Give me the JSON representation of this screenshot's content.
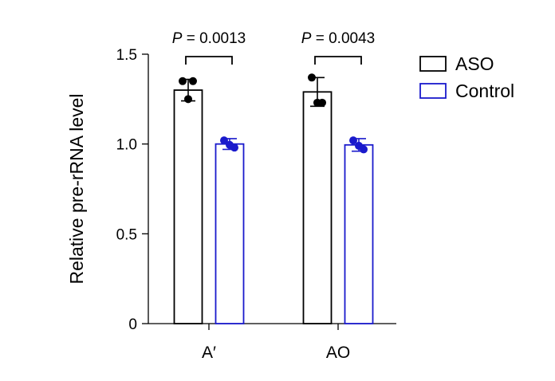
{
  "chart_data": {
    "type": "bar",
    "ylabel": "Relative pre-rRNA level",
    "ylim": [
      0,
      1.5
    ],
    "yticks": [
      "0",
      "0.5",
      "1.0",
      "1.5"
    ],
    "categories": [
      "A′",
      "AO"
    ],
    "series": [
      {
        "name": "ASO",
        "color": "#000000",
        "values": [
          1.3,
          1.29
        ],
        "error": [
          [
            1.24,
            1.36
          ],
          [
            1.21,
            1.37
          ]
        ],
        "points": [
          [
            1.35,
            1.35,
            1.25
          ],
          [
            1.37,
            1.23,
            1.23
          ]
        ]
      },
      {
        "name": "Control",
        "color": "#1a1acc",
        "values": [
          1.0,
          0.995
        ],
        "error": [
          [
            0.97,
            1.03
          ],
          [
            0.96,
            1.03
          ]
        ],
        "points": [
          [
            1.02,
            0.98,
            0.995
          ],
          [
            1.02,
            0.97,
            0.99
          ]
        ]
      }
    ],
    "annotations": [
      {
        "category": 0,
        "prefix": "P",
        "text": " = 0.0013"
      },
      {
        "category": 1,
        "prefix": "P",
        "text": " = 0.0043"
      }
    ],
    "legend": "top-right"
  }
}
